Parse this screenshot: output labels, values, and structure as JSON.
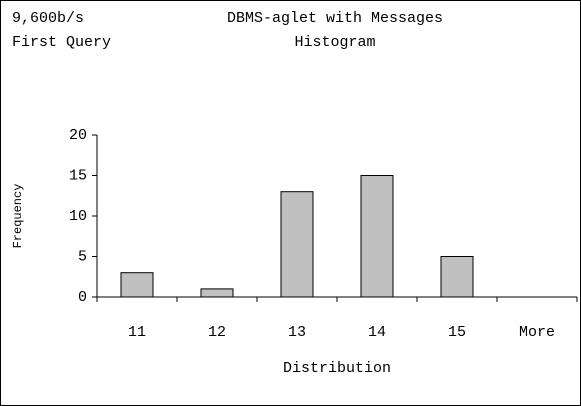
{
  "chart_data": {
    "type": "bar",
    "title": "DBMS-aglet with Messages",
    "subtitle": "Histogram",
    "annotations": [
      "9,600b/s",
      "First Query"
    ],
    "x_label": "Distribution",
    "y_label": "Frequency",
    "categories": [
      "11",
      "12",
      "13",
      "14",
      "15",
      "More"
    ],
    "values": [
      3,
      1,
      13,
      15,
      5,
      0
    ],
    "color": "#c0c0c0",
    "ylim": [
      0,
      20
    ],
    "yticks": [
      0,
      5,
      10,
      15,
      20
    ],
    "grid": false
  }
}
